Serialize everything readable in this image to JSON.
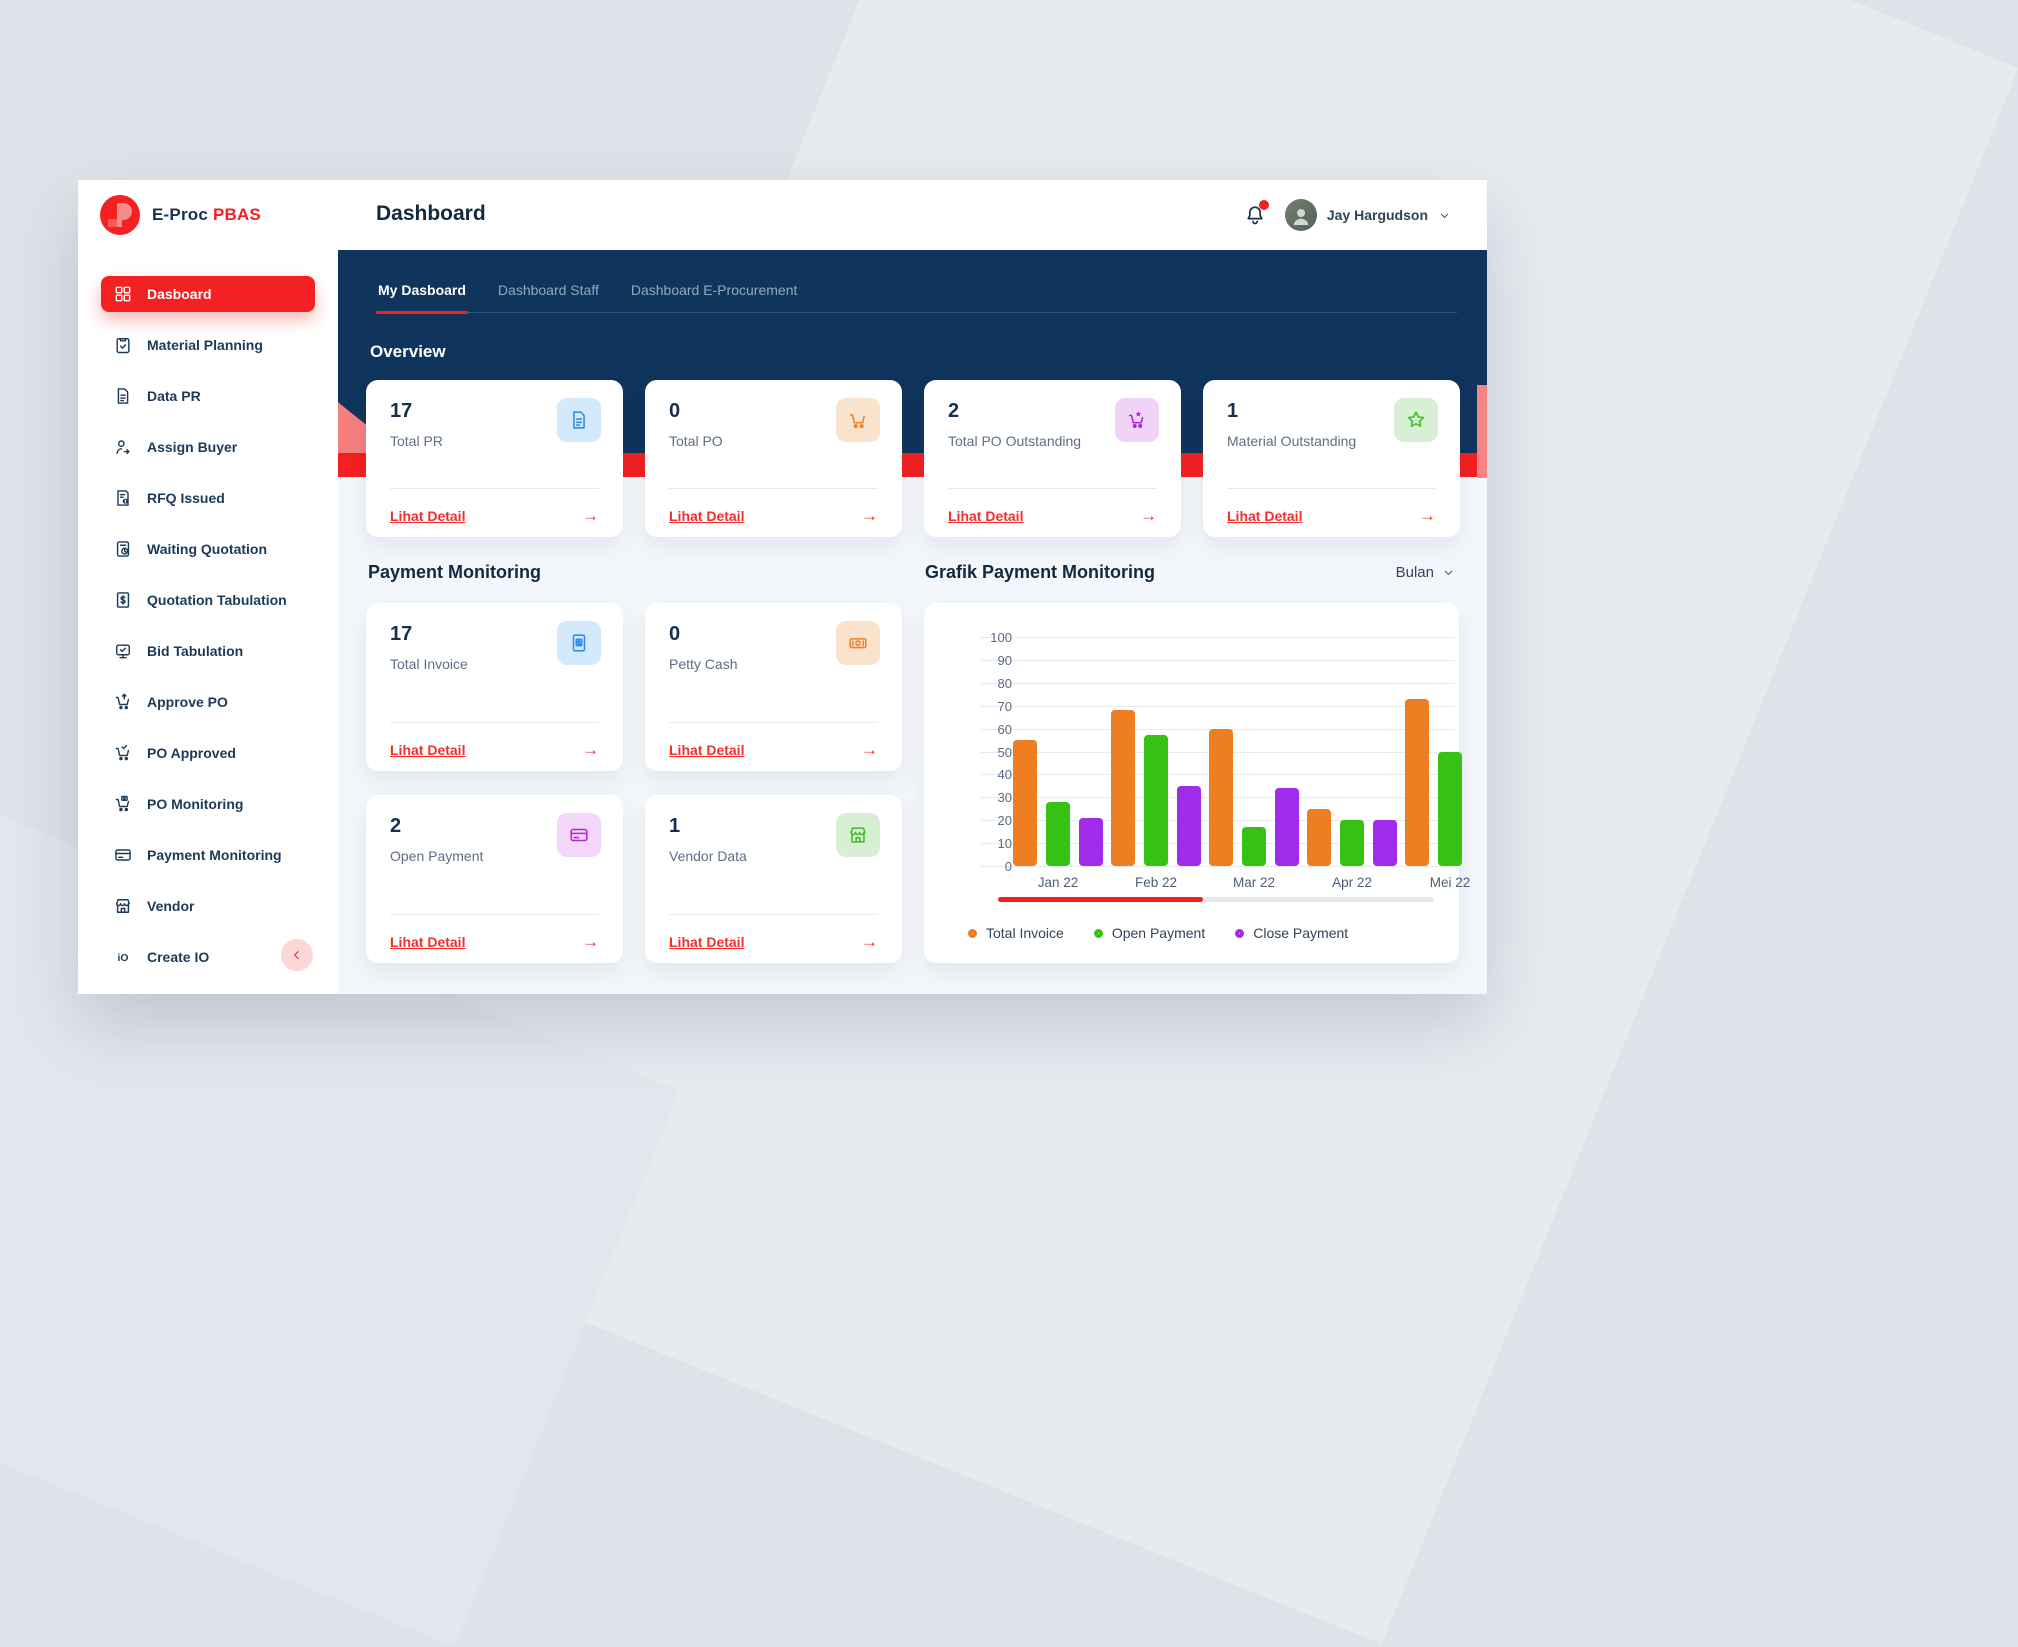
{
  "theme": {
    "primary_red": "#F32121",
    "banner_navy": "#0F355C",
    "salmon": "#F57F7F",
    "content_bg": "#F3F6FA"
  },
  "brand": {
    "name": "E-Proc",
    "accent": "PBAS"
  },
  "header": {
    "title": "Dashboard",
    "user_name": "Jay Hargudson",
    "has_notification": true
  },
  "sidebar": {
    "items": [
      {
        "label": "Dasboard",
        "icon": "grid-icon",
        "active": true
      },
      {
        "label": "Material Planning",
        "icon": "clipboard-check-icon",
        "active": false
      },
      {
        "label": "Data PR",
        "icon": "document-icon",
        "active": false
      },
      {
        "label": "Assign Buyer",
        "icon": "user-assign-icon",
        "active": false
      },
      {
        "label": "RFQ Issued",
        "icon": "document-alert-icon",
        "active": false
      },
      {
        "label": "Waiting Quotation",
        "icon": "document-clock-icon",
        "active": false
      },
      {
        "label": "Quotation Tabulation",
        "icon": "document-dollar-icon",
        "active": false
      },
      {
        "label": "Bid Tabulation",
        "icon": "board-check-icon",
        "active": false
      },
      {
        "label": "Approve PO",
        "icon": "cart-up-icon",
        "active": false
      },
      {
        "label": "PO Approved",
        "icon": "cart-check-icon",
        "active": false
      },
      {
        "label": "PO Monitoring",
        "icon": "cart-monitor-icon",
        "active": false
      },
      {
        "label": "Payment Monitoring",
        "icon": "credit-card-icon",
        "active": false
      },
      {
        "label": "Vendor",
        "icon": "store-icon",
        "active": false
      },
      {
        "label": "Create IO",
        "icon": "io-icon",
        "active": false
      }
    ]
  },
  "tabs": [
    {
      "label": "My Dasboard",
      "active": true
    },
    {
      "label": "Dashboard Staff",
      "active": false
    },
    {
      "label": "Dashboard E-Procurement",
      "active": false
    }
  ],
  "overview": {
    "title": "Overview",
    "cards": [
      {
        "value": "17",
        "label": "Total PR",
        "icon": "document-icon",
        "tile_bg": "#D5E9FC",
        "icon_color": "#2D8EEF",
        "link_label": "Lihat Detail"
      },
      {
        "value": "0",
        "label": "Total PO",
        "icon": "cart-icon",
        "tile_bg": "#FAE3CC",
        "icon_color": "#EE8227",
        "link_label": "Lihat Detail"
      },
      {
        "value": "2",
        "label": "Total PO Outstanding",
        "icon": "cart-star-icon",
        "tile_bg": "#F0D4F8",
        "icon_color": "#AF24DD",
        "link_label": "Lihat Detail"
      },
      {
        "value": "1",
        "label": "Material Outstanding",
        "icon": "star-icon",
        "tile_bg": "#D7EFD2",
        "icon_color": "#3CBF23",
        "link_label": "Lihat Detail"
      }
    ]
  },
  "payment_monitoring": {
    "title": "Payment Monitoring",
    "cards": [
      {
        "value": "17",
        "label": "Total Invoice",
        "icon": "invoice-icon",
        "tile_bg": "#D5E9FC",
        "icon_color": "#2D8EEF",
        "link_label": "Lihat Detail"
      },
      {
        "value": "0",
        "label": "Petty Cash",
        "icon": "cash-icon",
        "tile_bg": "#FAE3CC",
        "icon_color": "#EE8227",
        "link_label": "Lihat Detail"
      },
      {
        "value": "2",
        "label": "Open Payment",
        "icon": "credit-card-icon",
        "tile_bg": "#F3D7F9",
        "icon_color": "#BA25D8",
        "link_label": "Lihat Detail"
      },
      {
        "value": "1",
        "label": "Vendor Data",
        "icon": "store-icon",
        "tile_bg": "#D7EFD2",
        "icon_color": "#3CBF23",
        "link_label": "Lihat Detail"
      }
    ]
  },
  "chart": {
    "title": "Grafik Payment Monitoring",
    "period_selector": "Bulan",
    "scrollbar_thumb_ratio": 0.47
  },
  "chart_data": {
    "type": "bar",
    "title": "Grafik Payment Monitoring",
    "categories": [
      "Jan 22",
      "Feb 22",
      "Mar 22",
      "Apr 22",
      "Mei 22"
    ],
    "series": [
      {
        "name": "Total Invoice",
        "color": "#EF7D22",
        "values": [
          55,
          68,
          60,
          25,
          73
        ]
      },
      {
        "name": "Open Payment",
        "color": "#35C214",
        "values": [
          28,
          57,
          17,
          20,
          50
        ]
      },
      {
        "name": "Close Payment",
        "color": "#A12BEA",
        "values": [
          21,
          35,
          34,
          20,
          null
        ]
      }
    ],
    "ylim": [
      0,
      100
    ],
    "yticks": [
      0,
      10,
      20,
      30,
      40,
      50,
      60,
      70,
      80,
      90,
      100
    ],
    "grid": true,
    "legend_position": "bottom",
    "xlabel": "",
    "ylabel": ""
  }
}
